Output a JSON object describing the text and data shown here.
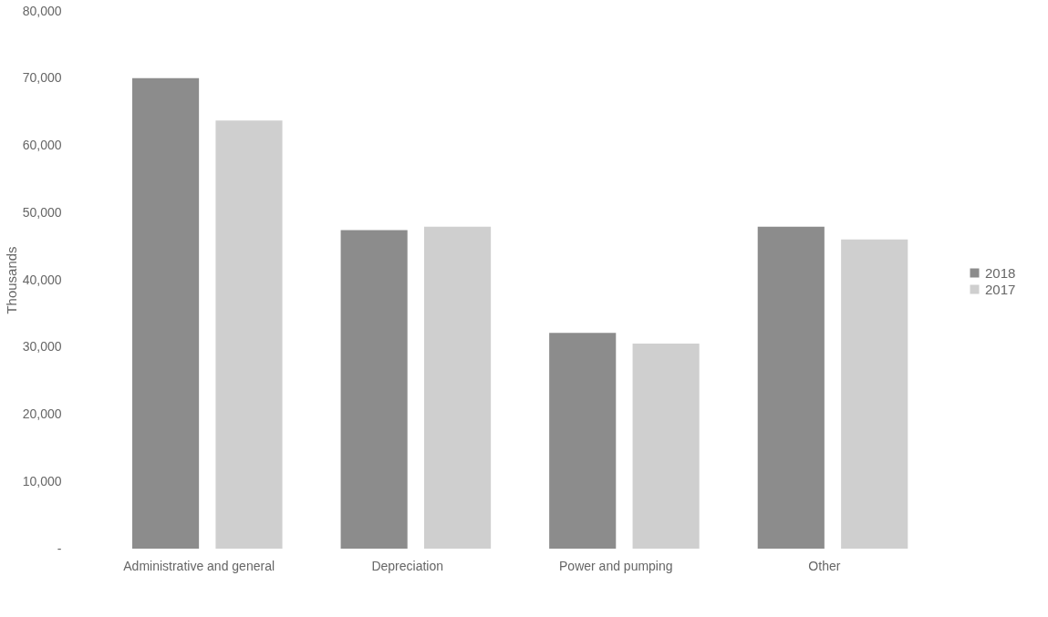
{
  "chart_data": {
    "type": "bar",
    "ylabel": "Thousands",
    "categories": [
      "Administrative and general",
      "Depreciation",
      "Power and pumping",
      "Other"
    ],
    "series": [
      {
        "name": "2018",
        "color": "#8c8c8c",
        "values": [
          70000,
          47400,
          32100,
          47900
        ]
      },
      {
        "name": "2017",
        "color": "#cfcfcf",
        "values": [
          63700,
          47900,
          30500,
          46000
        ]
      }
    ],
    "ylim": [
      0,
      80000
    ],
    "yticks": [
      {
        "value": 0,
        "label": "-"
      },
      {
        "value": 10000,
        "label": "10,000"
      },
      {
        "value": 20000,
        "label": "20,000"
      },
      {
        "value": 30000,
        "label": "30,000"
      },
      {
        "value": 40000,
        "label": "40,000"
      },
      {
        "value": 50000,
        "label": "50,000"
      },
      {
        "value": 60000,
        "label": "60,000"
      },
      {
        "value": 70000,
        "label": "70,000"
      },
      {
        "value": 80000,
        "label": "80,000"
      }
    ],
    "grid": false,
    "legend": "right"
  }
}
